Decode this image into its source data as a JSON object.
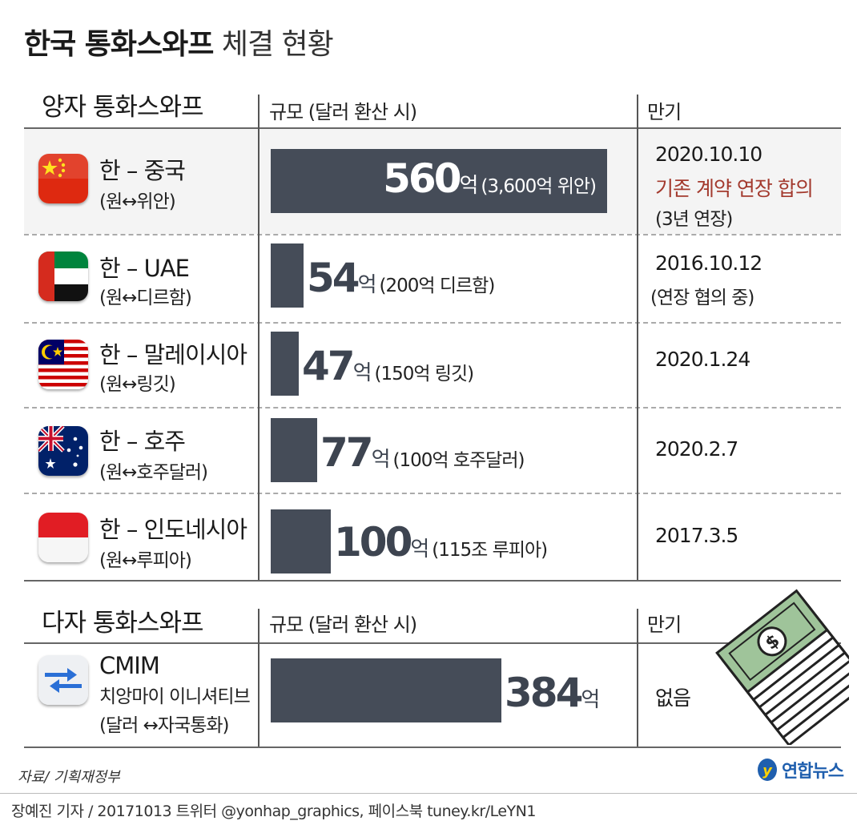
{
  "title": {
    "bold": "한국 통화스와프",
    "normal": "체결 현황"
  },
  "bilateral": {
    "section_title": "양자 통화스와프",
    "col_scale": "규모 (달러 환산 시)",
    "col_maturity": "만기"
  },
  "multilateral": {
    "section_title": "다자 통화스와프",
    "col_scale": "규모 (달러 환산 시)",
    "col_maturity": "만기"
  },
  "rows": [
    {
      "name": "한 – 중국",
      "sub": "(원↔위안)",
      "value_text": "560",
      "unit": "억",
      "note": "(3,600억 위안)",
      "date": "2020.10.10",
      "date_note_accent": "기존 계약 연장 합의",
      "date_note": "(3년 연장)"
    },
    {
      "name": "한 – UAE",
      "sub": "(원↔디르함)",
      "value_text": "54",
      "unit": "억",
      "note": "(200억 디르함)",
      "date": "2016.10.12",
      "date_note": "(연장 협의 중)"
    },
    {
      "name": "한 – 말레이시아",
      "sub": "(원↔링깃)",
      "value_text": "47",
      "unit": "억",
      "note": "(150억 링깃)",
      "date": "2020.1.24"
    },
    {
      "name": "한 – 호주",
      "sub": "(원↔호주달러)",
      "value_text": "77",
      "unit": "억",
      "note": "(100억 호주달러)",
      "date": "2020.2.7"
    },
    {
      "name": "한 – 인도네시아",
      "sub": "(원↔루피아)",
      "value_text": "100",
      "unit": "억",
      "note": "(115조 루피아)",
      "date": "2017.3.5"
    }
  ],
  "cmim": {
    "name": "CMIM",
    "name2": "치앙마이 이니셔티브",
    "sub": "(달러 ↔자국통화)",
    "value_text": "384",
    "unit": "억",
    "maturity": "없음"
  },
  "source": "자료/ 기획재정부",
  "logo_text": "연합뉴스",
  "credit": "장예진 기자 / 20171013 트위터 @yonhap_graphics, 페이스북 tuney.kr/LeYN1",
  "colors": {
    "bar": "#454c58",
    "accent": "#a33a2e",
    "logo": "#1f5fae"
  },
  "icons": [
    "flag-china-icon",
    "flag-uae-icon",
    "flag-malaysia-icon",
    "flag-australia-icon",
    "flag-indonesia-icon",
    "cmim-exchange-icon",
    "money-stack-icon",
    "yonhap-logo-icon"
  ],
  "chart_data": {
    "type": "bar",
    "orientation": "horizontal",
    "unit": "억 달러",
    "categories": [
      "한 – 중국",
      "한 – UAE",
      "한 – 말레이시아",
      "한 – 호주",
      "한 – 인도네시아",
      "CMIM"
    ],
    "values": [
      560,
      54,
      47,
      77,
      100,
      384
    ]
  }
}
